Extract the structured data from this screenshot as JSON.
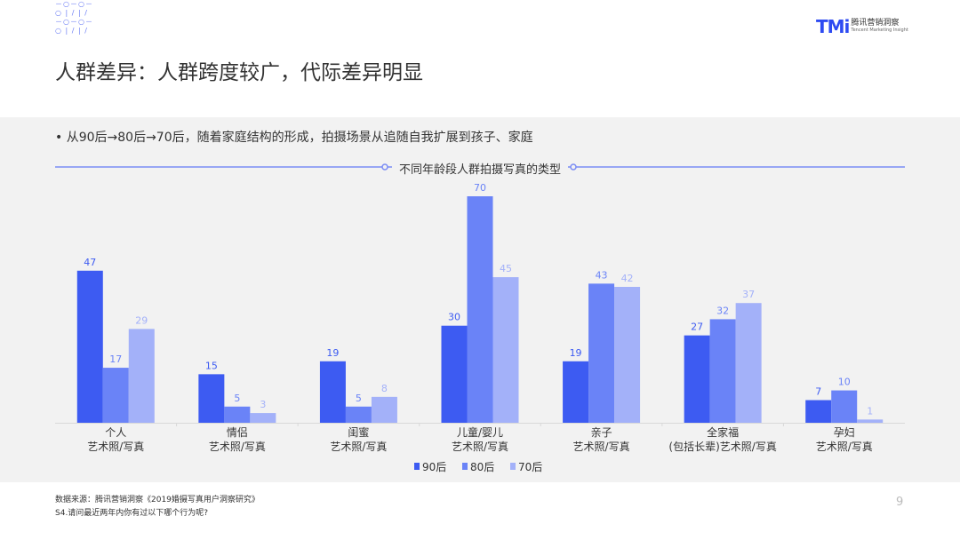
{
  "header": {
    "title": "人群差异：人群跨度较广，代际差异明显",
    "logo": "TMi 腾讯营销洞察 Tencent Marketing Insight",
    "logo_mark": "TMi",
    "logo_cn": "腾讯营销洞察",
    "logo_en": "Tencent Marketing Insight"
  },
  "bullet": "• 从90后→80后→70后，随着家庭结构的形成，拍摄场景从追随自我扩展到孩子、家庭",
  "footer": {
    "source": "数据来源：腾讯营销洞察《2019婚摄写真用户洞察研究》",
    "question": "S4.请问最近两年内你有过以下哪个行为呢?",
    "page": "9"
  },
  "chart_data": {
    "type": "bar",
    "title": "不同年龄段人群拍摄写真的类型",
    "categories": [
      [
        "个人",
        "艺术照/写真"
      ],
      [
        "情侣",
        "艺术照/写真"
      ],
      [
        "闺蜜",
        "艺术照/写真"
      ],
      [
        "儿童/婴儿",
        "艺术照/写真"
      ],
      [
        "亲子",
        "艺术照/写真"
      ],
      [
        "全家福",
        "(包括长辈)艺术照/写真"
      ],
      [
        "孕妇",
        "艺术照/写真"
      ]
    ],
    "series": [
      {
        "name": "90后",
        "color": "#3d5bf2",
        "values": [
          47,
          15,
          19,
          30,
          19,
          27,
          7
        ]
      },
      {
        "name": "80后",
        "color": "#6a83f7",
        "values": [
          17,
          5,
          5,
          70,
          43,
          32,
          10
        ]
      },
      {
        "name": "70后",
        "color": "#a3b1f9",
        "values": [
          29,
          3,
          8,
          45,
          42,
          37,
          1
        ]
      }
    ],
    "ylim": [
      0,
      70
    ],
    "grid": false,
    "legend": "bottom"
  }
}
